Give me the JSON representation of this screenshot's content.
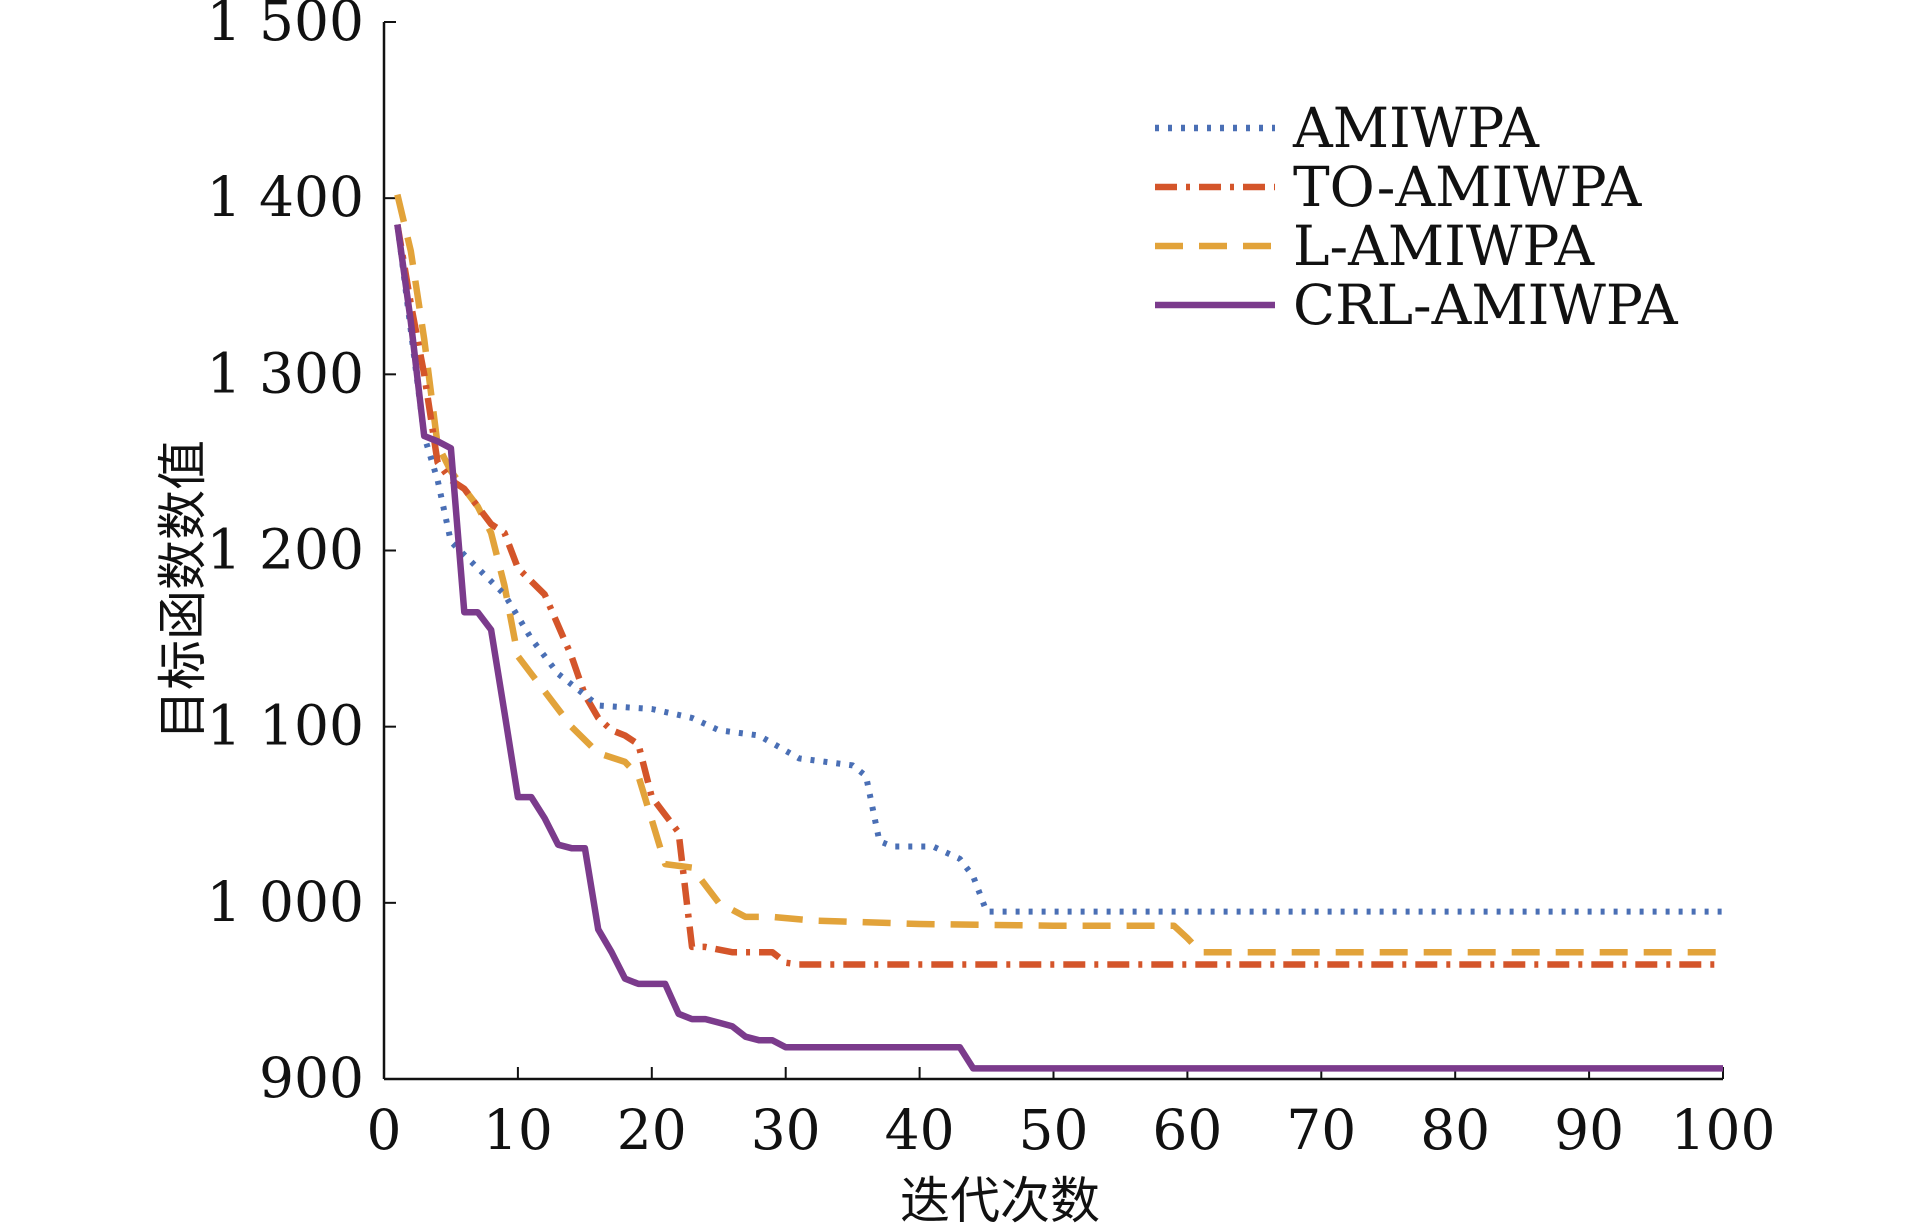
{
  "chart_data": {
    "type": "line",
    "title": "",
    "xlabel": "迭代次数",
    "ylabel": "目标函数数值",
    "xlim": [
      0,
      100
    ],
    "ylim": [
      900,
      1500
    ],
    "xticks": [
      0,
      10,
      20,
      30,
      40,
      50,
      60,
      70,
      80,
      90,
      100
    ],
    "yticks": [
      900,
      1000,
      1100,
      1200,
      1300,
      1400,
      1500
    ],
    "xtick_labels": [
      "0",
      "10",
      "20",
      "30",
      "40",
      "50",
      "60",
      "70",
      "80",
      "90",
      "100"
    ],
    "ytick_labels": [
      "900",
      "1 000",
      "1 100",
      "1 200",
      "1 300",
      "1 400",
      "1 500"
    ],
    "grid": false,
    "legend_position": "top-right",
    "series": [
      {
        "name": "AMIWPA",
        "color": "#4a6fb5",
        "style": "dotted",
        "x": [
          1,
          3,
          4,
          5,
          7,
          9,
          11,
          13,
          16,
          20,
          23,
          25,
          28,
          31,
          33,
          35,
          36,
          37,
          38,
          41,
          43,
          44,
          45,
          100
        ],
        "y": [
          1385,
          1265,
          1240,
          1205,
          1190,
          1175,
          1150,
          1130,
          1112,
          1110,
          1105,
          1098,
          1095,
          1082,
          1080,
          1078,
          1072,
          1035,
          1032,
          1032,
          1025,
          1015,
          995,
          995
        ]
      },
      {
        "name": "TO-AMIWPA",
        "color": "#d4552a",
        "style": "dashdot",
        "x": [
          1,
          2,
          3,
          4,
          5,
          6,
          8,
          9,
          10,
          12,
          14,
          15,
          16,
          17,
          18,
          19,
          20,
          21,
          22,
          23,
          24,
          26,
          29,
          30,
          31,
          100
        ],
        "y": [
          1385,
          1340,
          1300,
          1250,
          1240,
          1235,
          1215,
          1210,
          1190,
          1175,
          1140,
          1118,
          1105,
          1098,
          1095,
          1090,
          1060,
          1050,
          1040,
          975,
          975,
          972,
          972,
          966,
          965,
          965
        ]
      },
      {
        "name": "L-AMIWPA",
        "color": "#e2a33a",
        "style": "dashed",
        "x": [
          1,
          2,
          3,
          4,
          5,
          7,
          8,
          9,
          10,
          11,
          12,
          14,
          16,
          18,
          19,
          21,
          23,
          25,
          27,
          29,
          32,
          40,
          50,
          59,
          60,
          61,
          100
        ],
        "y": [
          1402,
          1370,
          1320,
          1260,
          1245,
          1225,
          1210,
          1180,
          1140,
          1130,
          1120,
          1100,
          1085,
          1080,
          1072,
          1022,
          1020,
          1000,
          992,
          992,
          990,
          988,
          987,
          987,
          980,
          972,
          972
        ]
      },
      {
        "name": "CRL-AMIWPA",
        "color": "#7b3b8c",
        "style": "solid",
        "x": [
          1,
          2,
          3,
          4,
          5,
          6,
          7,
          8,
          9,
          10,
          11,
          12,
          13,
          14,
          15,
          16,
          17,
          18,
          19,
          20,
          21,
          22,
          23,
          24,
          25,
          26,
          27,
          28,
          29,
          30,
          35,
          40,
          43,
          44,
          45,
          100
        ],
        "y": [
          1385,
          1330,
          1265,
          1262,
          1258,
          1165,
          1165,
          1155,
          1108,
          1060,
          1060,
          1048,
          1033,
          1031,
          1031,
          985,
          972,
          957,
          954,
          954,
          954,
          937,
          934,
          934,
          932,
          930,
          924,
          922,
          922,
          918,
          918,
          918,
          918,
          906,
          906,
          906
        ]
      }
    ]
  }
}
